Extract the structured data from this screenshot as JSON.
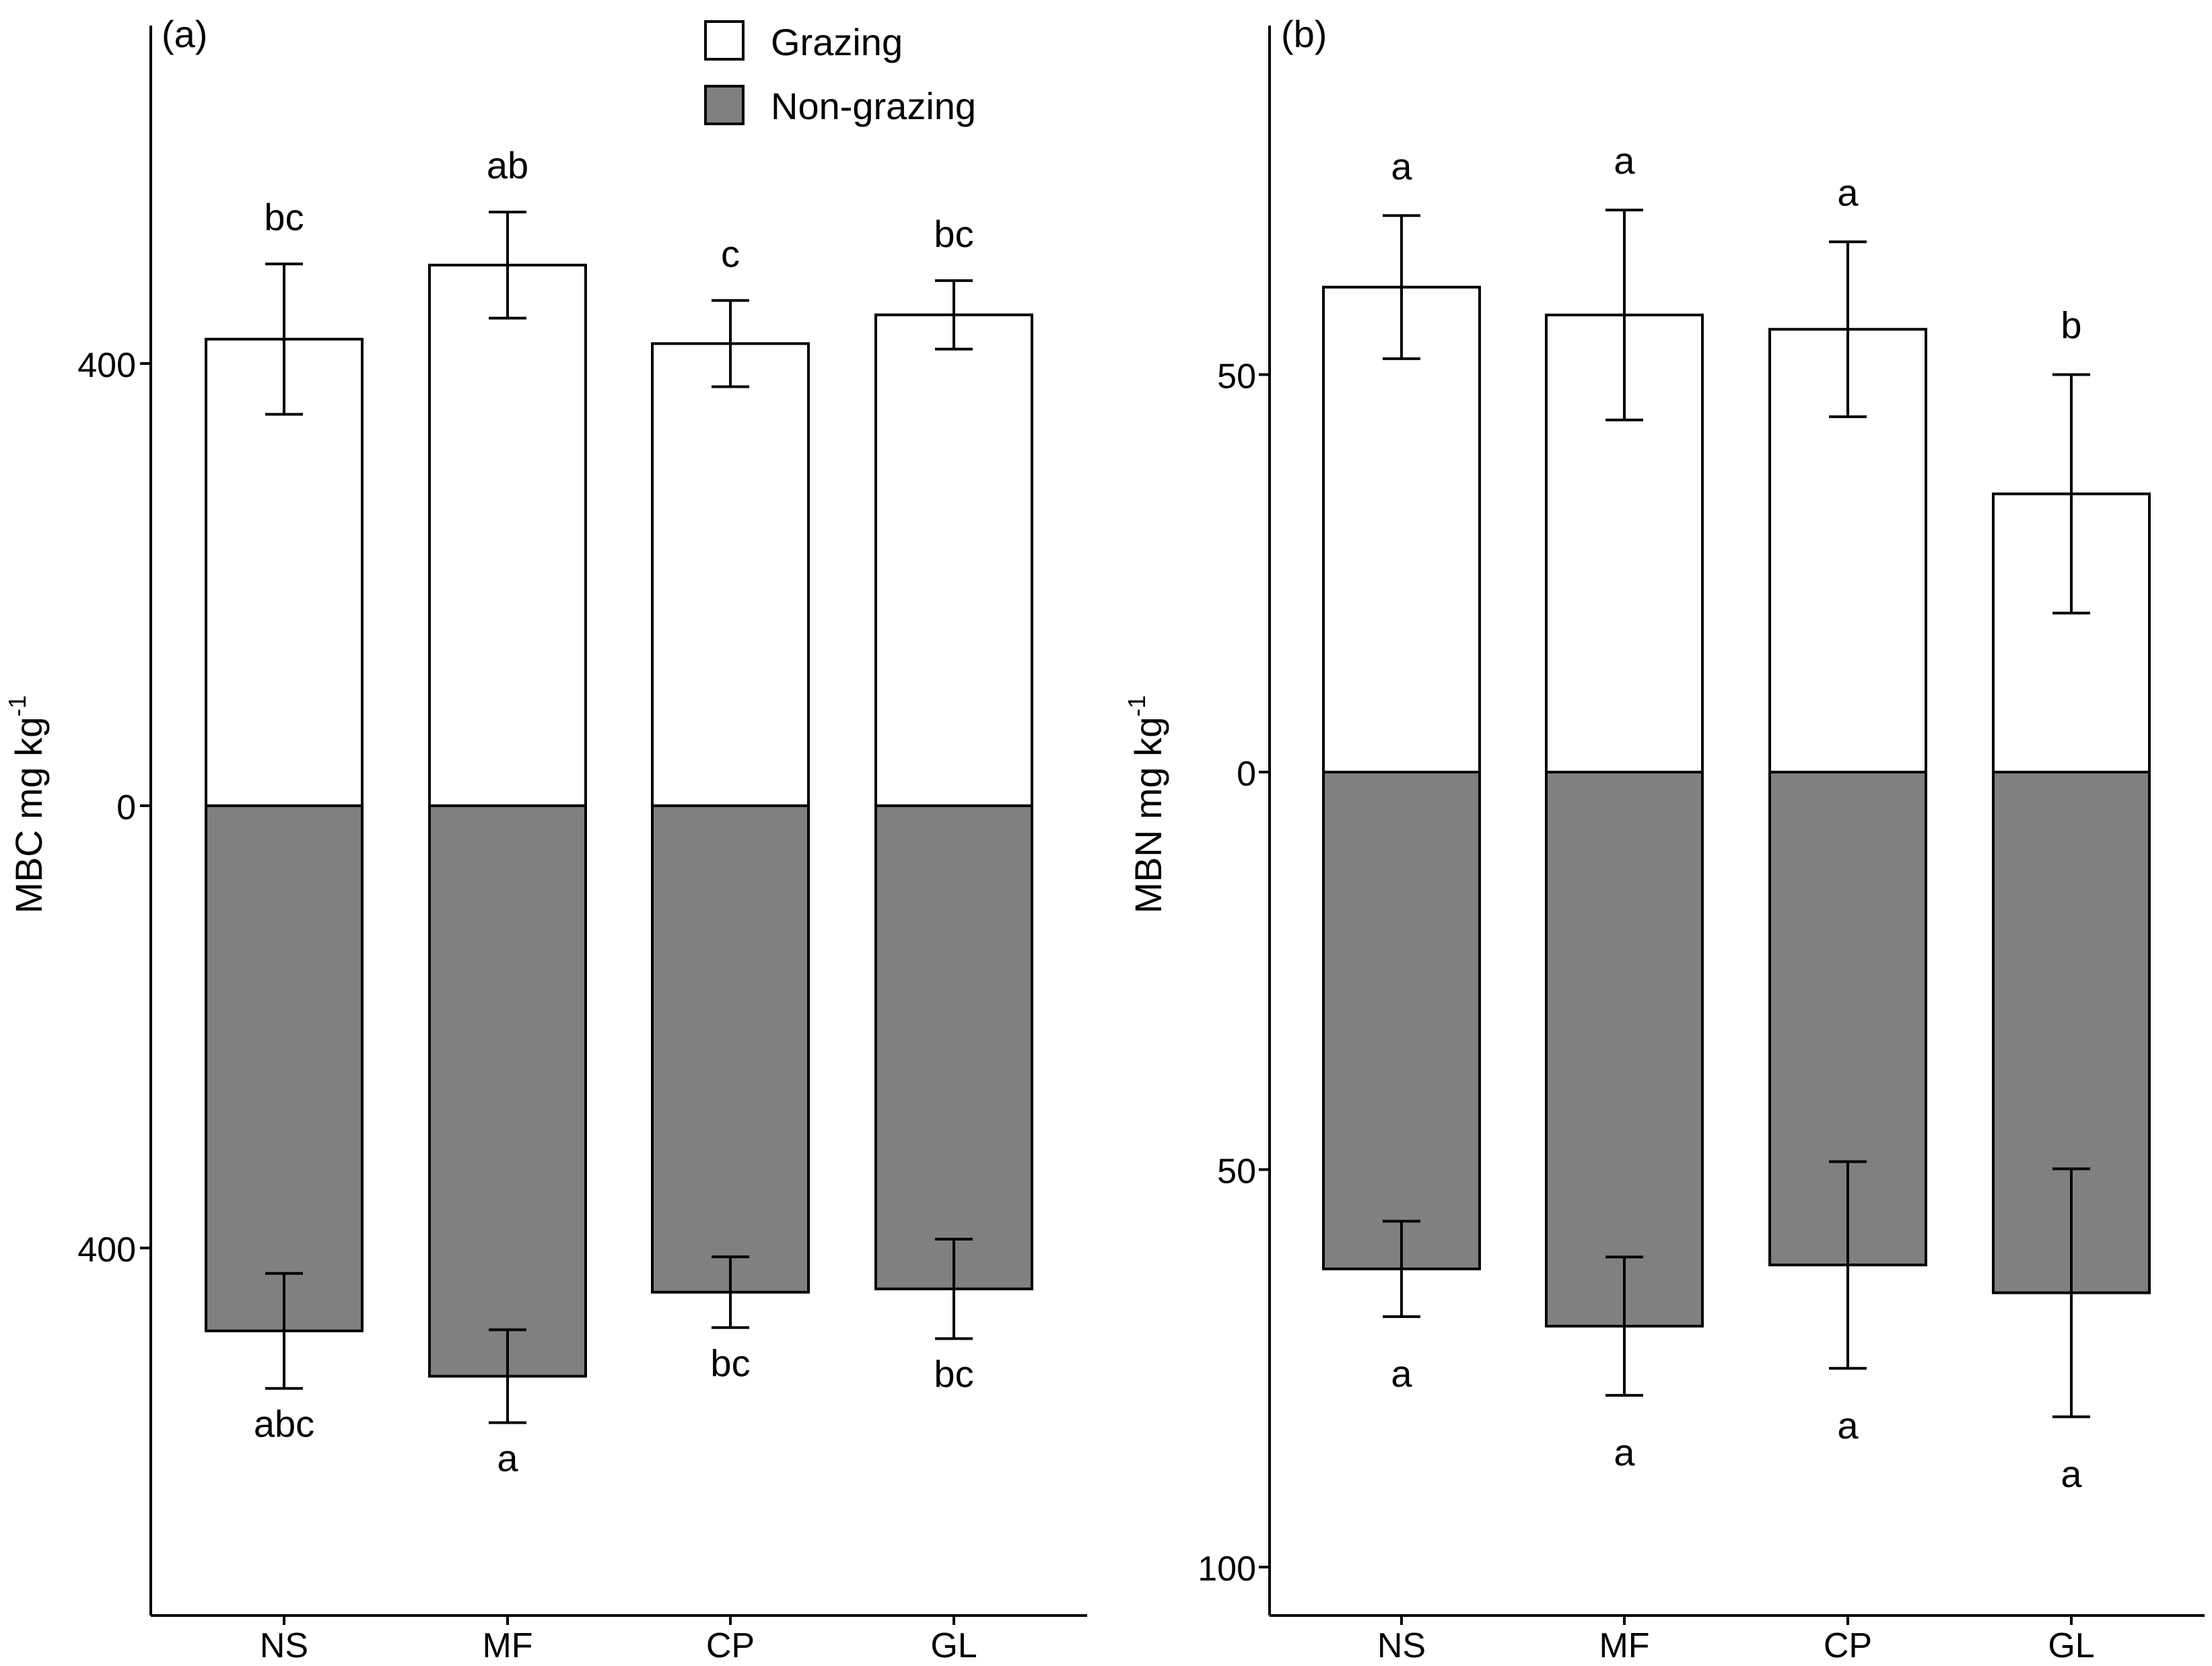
{
  "colors": {
    "grazing": "#ffffff",
    "non_grazing": "#808080",
    "stroke": "#000000"
  },
  "legend": {
    "items": [
      {
        "label": "Grazing",
        "color": "#ffffff"
      },
      {
        "label": "Non-grazing",
        "color": "#808080"
      }
    ],
    "placement": "top-right of panel (a)"
  },
  "chart_data": [
    {
      "type": "bar",
      "panel_label": "(a)",
      "title": "",
      "xlabel": "",
      "ylabel": "MBC mg kg",
      "ylabel_superscript": "-1",
      "categories": [
        "NS",
        "MF",
        "CP",
        "GL"
      ],
      "ylim": [
        -730,
        700
      ],
      "yticks": [
        -400,
        0,
        400
      ],
      "ytick_labels": [
        "400",
        "0",
        "400"
      ],
      "series": [
        {
          "name": "Grazing",
          "direction": "up",
          "values": [
            422,
            489,
            418,
            444
          ],
          "errors": [
            68,
            48,
            39,
            31
          ],
          "letters": [
            "bc",
            "ab",
            "c",
            "bc"
          ]
        },
        {
          "name": "Non-grazing",
          "direction": "down",
          "values": [
            475,
            516,
            440,
            437
          ],
          "errors": [
            52,
            42,
            32,
            45
          ],
          "letters": [
            "abc",
            "a",
            "bc",
            "bc"
          ]
        }
      ]
    },
    {
      "type": "bar",
      "panel_label": "(b)",
      "title": "",
      "xlabel": "",
      "ylabel": "MBN mg kg",
      "ylabel_superscript": "-1",
      "categories": [
        "NS",
        "MF",
        "CP",
        "GL"
      ],
      "ylim": [
        -106,
        94
      ],
      "yticks": [
        -100,
        -50,
        0,
        50
      ],
      "ytick_labels": [
        "100",
        "50",
        "0",
        "50"
      ],
      "series": [
        {
          "name": "Grazing",
          "direction": "up",
          "values": [
            61,
            57.5,
            55.7,
            35
          ],
          "errors": [
            9,
            13.2,
            11,
            15
          ],
          "letters": [
            "a",
            "a",
            "a",
            "b"
          ]
        },
        {
          "name": "Non-grazing",
          "direction": "down",
          "values": [
            62.5,
            69.7,
            62,
            65.5
          ],
          "errors": [
            6,
            8.7,
            13,
            15.6
          ],
          "letters": [
            "a",
            "a",
            "a",
            "a"
          ]
        }
      ]
    }
  ]
}
